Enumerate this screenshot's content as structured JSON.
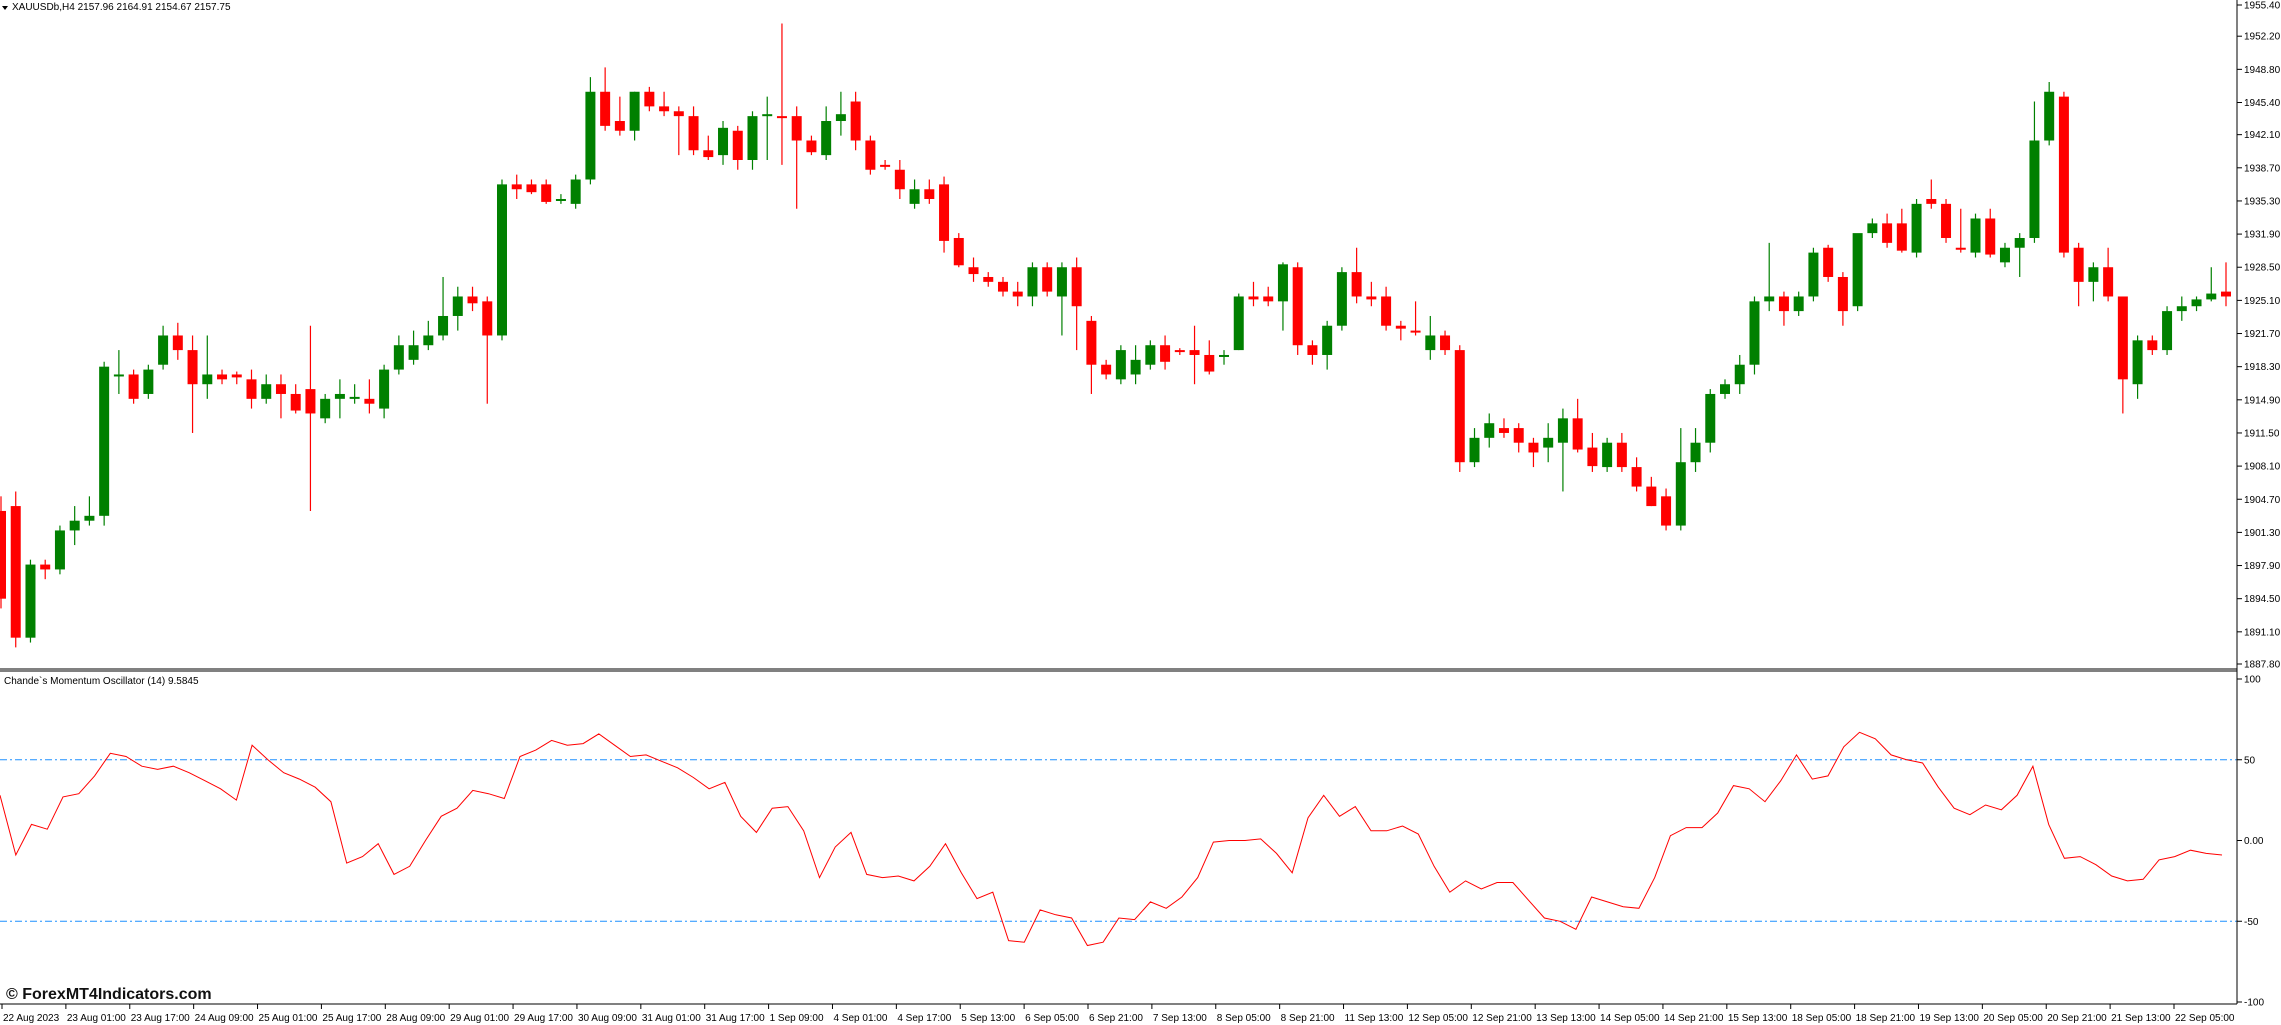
{
  "header": {
    "symbol_line": "XAUUSDb,H4  2157.96 2164.91 2154.67 2157.75",
    "menu_icon": "triangle-down-icon"
  },
  "indicator": {
    "title": "Chande`s Momentum Oscillator (14) 9.5845"
  },
  "watermark": {
    "copyright": "©",
    "text": "ForexMT4Indicators.com"
  },
  "colors": {
    "bull": "#008000",
    "bear": "#ff0000",
    "oscillator": "#ff0000",
    "level_lines": "#1e90ff",
    "separator": "#808080",
    "axis_text": "#000000"
  },
  "chart_data": [
    {
      "type": "candlestick",
      "title": "",
      "ylim": [
        1887.8,
        1955.4
      ],
      "y_ticks": [
        "1955.40",
        "1952.20",
        "1948.80",
        "1945.40",
        "1942.10",
        "1938.70",
        "1935.30",
        "1931.90",
        "1928.50",
        "1925.10",
        "1921.70",
        "1918.30",
        "1914.90",
        "1911.50",
        "1908.10",
        "1904.70",
        "1901.30",
        "1897.90",
        "1894.50",
        "1891.10",
        "1887.80"
      ],
      "x_ticks": [
        "22 Aug 2023",
        "23 Aug 01:00",
        "23 Aug 17:00",
        "24 Aug 09:00",
        "25 Aug 01:00",
        "25 Aug 17:00",
        "28 Aug 09:00",
        "29 Aug 01:00",
        "29 Aug 17:00",
        "30 Aug 09:00",
        "31 Aug 01:00",
        "31 Aug 17:00",
        "1 Sep 09:00",
        "4 Sep 01:00",
        "4 Sep 17:00",
        "5 Sep 13:00",
        "6 Sep 05:00",
        "6 Sep 21:00",
        "7 Sep 13:00",
        "8 Sep 05:00",
        "8 Sep 21:00",
        "11 Sep 13:00",
        "12 Sep 05:00",
        "12 Sep 21:00",
        "13 Sep 13:00",
        "14 Sep 05:00",
        "14 Sep 21:00",
        "15 Sep 13:00",
        "18 Sep 05:00",
        "18 Sep 21:00",
        "19 Sep 13:00",
        "20 Sep 05:00",
        "20 Sep 21:00",
        "21 Sep 13:00",
        "22 Sep 05:00"
      ],
      "candles": [
        [
          1903.5,
          1905,
          1893.5,
          1894.5
        ],
        [
          1904,
          1905.5,
          1889.5,
          1890.5
        ],
        [
          1890.5,
          1898.5,
          1890,
          1898
        ],
        [
          1898,
          1898.5,
          1896.5,
          1897.5
        ],
        [
          1897.5,
          1902,
          1897,
          1901.5
        ],
        [
          1901.5,
          1904,
          1900,
          1902.5
        ],
        [
          1902.5,
          1905,
          1902,
          1903
        ],
        [
          1903,
          1918.8,
          1902,
          1918.3
        ],
        [
          1917.5,
          1920,
          1915.5,
          1917.5
        ],
        [
          1917.5,
          1918,
          1914.5,
          1915
        ],
        [
          1915.5,
          1918.5,
          1915,
          1918
        ],
        [
          1918.5,
          1922.5,
          1918,
          1921.5
        ],
        [
          1921.5,
          1922.8,
          1919,
          1920
        ],
        [
          1920,
          1921.5,
          1911.5,
          1916.5
        ],
        [
          1916.5,
          1921.5,
          1915,
          1917.5
        ],
        [
          1917.5,
          1918,
          1916.5,
          1917
        ],
        [
          1917.5,
          1917.8,
          1916.5,
          1917.2
        ],
        [
          1917,
          1918,
          1914,
          1915
        ],
        [
          1915,
          1917.5,
          1914.5,
          1916.5
        ],
        [
          1916.5,
          1917.5,
          1913,
          1915.5
        ],
        [
          1915.5,
          1916.5,
          1913.5,
          1913.8
        ],
        [
          1916,
          1922.5,
          1903.5,
          1913.5
        ],
        [
          1913,
          1915.5,
          1912.5,
          1915
        ],
        [
          1915,
          1917,
          1913,
          1915.5
        ],
        [
          1915,
          1916.5,
          1914.5,
          1915.2
        ],
        [
          1915,
          1917,
          1913.5,
          1914.5
        ],
        [
          1914,
          1918.5,
          1913,
          1918
        ],
        [
          1918,
          1921.5,
          1917.5,
          1920.5
        ],
        [
          1919,
          1922,
          1918.5,
          1920.5
        ],
        [
          1920.5,
          1923,
          1920,
          1921.5
        ],
        [
          1921.5,
          1927.5,
          1921,
          1923.5
        ],
        [
          1923.5,
          1926.5,
          1922,
          1925.5
        ],
        [
          1925.5,
          1926.5,
          1924,
          1924.8
        ],
        [
          1925,
          1925.5,
          1914.5,
          1921.5
        ],
        [
          1921.5,
          1937.5,
          1921,
          1937
        ],
        [
          1937,
          1938,
          1935.5,
          1936.5
        ],
        [
          1937,
          1937.5,
          1936,
          1936.2
        ],
        [
          1937,
          1937.5,
          1935,
          1935.2
        ],
        [
          1935.5,
          1936,
          1935,
          1935.5
        ],
        [
          1935,
          1938,
          1934.5,
          1937.5
        ],
        [
          1937.5,
          1948,
          1937,
          1946.5
        ],
        [
          1946.5,
          1949,
          1942.5,
          1943
        ],
        [
          1943.5,
          1946,
          1942,
          1942.5
        ],
        [
          1942.5,
          1946.5,
          1941.5,
          1946.5
        ],
        [
          1946.5,
          1947,
          1944.5,
          1945
        ],
        [
          1945,
          1946.5,
          1944,
          1944.5
        ],
        [
          1944.5,
          1945,
          1940,
          1944
        ],
        [
          1944,
          1945,
          1940,
          1940.5
        ],
        [
          1940.5,
          1942,
          1939.5,
          1939.8
        ],
        [
          1940,
          1943.5,
          1939,
          1942.8
        ],
        [
          1942.5,
          1943,
          1938.5,
          1939.5
        ],
        [
          1939.5,
          1944.5,
          1938.5,
          1944
        ],
        [
          1944,
          1946,
          1939.5,
          1944.2
        ],
        [
          1944,
          1953.5,
          1939,
          1943.8
        ],
        [
          1944,
          1945,
          1934.5,
          1941.5
        ],
        [
          1941.5,
          1942,
          1940,
          1940.3
        ],
        [
          1940,
          1945,
          1939.5,
          1943.5
        ],
        [
          1943.5,
          1946.5,
          1942,
          1944.2
        ],
        [
          1945.5,
          1946.5,
          1940.5,
          1941.5
        ],
        [
          1941.5,
          1942,
          1938,
          1938.5
        ],
        [
          1939,
          1939.5,
          1938.5,
          1938.8
        ],
        [
          1938.5,
          1939.5,
          1935.5,
          1936.5
        ],
        [
          1935,
          1937.5,
          1934.5,
          1936.5
        ],
        [
          1936.5,
          1937.5,
          1935,
          1935.5
        ],
        [
          1937,
          1937.8,
          1930,
          1931.2
        ],
        [
          1931.5,
          1932,
          1928.5,
          1928.7
        ],
        [
          1928.5,
          1929.5,
          1927,
          1927.8
        ],
        [
          1927.5,
          1928,
          1926.5,
          1927
        ],
        [
          1927,
          1927.5,
          1925.5,
          1926
        ],
        [
          1926,
          1927,
          1924.5,
          1925.5
        ],
        [
          1925.5,
          1929,
          1924.5,
          1928.5
        ],
        [
          1928.5,
          1929,
          1925.5,
          1926
        ],
        [
          1925.5,
          1929,
          1921.5,
          1928.5
        ],
        [
          1928.5,
          1929.5,
          1920,
          1924.5
        ],
        [
          1923,
          1923.5,
          1915.5,
          1918.5
        ],
        [
          1918.5,
          1919,
          1917,
          1917.5
        ],
        [
          1917,
          1920.5,
          1916.5,
          1920
        ],
        [
          1917.5,
          1920.5,
          1916.5,
          1919
        ],
        [
          1918.5,
          1921,
          1918,
          1920.5
        ],
        [
          1920.5,
          1921.5,
          1918,
          1918.8
        ],
        [
          1920,
          1920.2,
          1919.5,
          1919.8
        ],
        [
          1920,
          1922.5,
          1916.5,
          1919.5
        ],
        [
          1919.5,
          1921,
          1917.5,
          1917.8
        ],
        [
          1919.5,
          1920,
          1918.5,
          1919.5
        ],
        [
          1920,
          1925.8,
          1920,
          1925.5
        ],
        [
          1925.5,
          1927,
          1924.5,
          1925.2
        ],
        [
          1925.5,
          1926.5,
          1924.5,
          1925
        ],
        [
          1925,
          1929,
          1922,
          1928.8
        ],
        [
          1928.5,
          1929,
          1919.5,
          1920.5
        ],
        [
          1920.5,
          1921,
          1918.5,
          1919.5
        ],
        [
          1919.5,
          1923,
          1918,
          1922.5
        ],
        [
          1922.5,
          1928.5,
          1922,
          1928
        ],
        [
          1928,
          1930.5,
          1924.8,
          1925.5
        ],
        [
          1925.5,
          1927,
          1924.5,
          1925.2
        ],
        [
          1925.5,
          1926.5,
          1922,
          1922.5
        ],
        [
          1922.5,
          1923,
          1921,
          1922.2
        ],
        [
          1922,
          1925,
          1921.5,
          1921.8
        ],
        [
          1920,
          1923.5,
          1919,
          1921.5
        ],
        [
          1921.5,
          1922,
          1919.5,
          1920
        ],
        [
          1920,
          1920.5,
          1907.5,
          1908.5
        ],
        [
          1908.5,
          1912,
          1908,
          1911
        ],
        [
          1911,
          1913.5,
          1910,
          1912.5
        ],
        [
          1912,
          1913,
          1911,
          1911.5
        ],
        [
          1912,
          1912.5,
          1909.5,
          1910.5
        ],
        [
          1910.5,
          1911,
          1908,
          1909.5
        ],
        [
          1910,
          1912.5,
          1908.5,
          1911
        ],
        [
          1910.5,
          1914,
          1905.5,
          1913
        ],
        [
          1913,
          1915,
          1909.5,
          1909.8
        ],
        [
          1910,
          1911.5,
          1907.5,
          1908.1
        ],
        [
          1908,
          1911,
          1907.5,
          1910.5
        ],
        [
          1910.5,
          1911.5,
          1907.5,
          1908
        ],
        [
          1908,
          1909,
          1905.5,
          1906
        ],
        [
          1906,
          1907,
          1904,
          1904
        ],
        [
          1905,
          1905.8,
          1901.5,
          1902
        ],
        [
          1902,
          1912,
          1901.5,
          1908.5
        ],
        [
          1908.5,
          1912,
          1907.5,
          1910.5
        ],
        [
          1910.5,
          1916,
          1909.5,
          1915.5
        ],
        [
          1915.5,
          1917,
          1915,
          1916.5
        ],
        [
          1916.5,
          1919.5,
          1915.5,
          1918.5
        ],
        [
          1918.5,
          1925.5,
          1917.5,
          1925
        ],
        [
          1925,
          1931,
          1924,
          1925.5
        ],
        [
          1925.5,
          1926,
          1922.5,
          1924
        ],
        [
          1924,
          1926,
          1923.5,
          1925.5
        ],
        [
          1925.5,
          1930.5,
          1925,
          1930
        ],
        [
          1930.5,
          1930.8,
          1927,
          1927.5
        ],
        [
          1927.5,
          1928,
          1922.5,
          1924
        ],
        [
          1924.5,
          1931.5,
          1924,
          1932
        ],
        [
          1932,
          1933.5,
          1931.5,
          1933
        ],
        [
          1933,
          1934,
          1930.5,
          1931
        ],
        [
          1933,
          1934.5,
          1930,
          1930.2
        ],
        [
          1930,
          1935.5,
          1929.5,
          1935
        ],
        [
          1935.5,
          1937.5,
          1934.5,
          1935
        ],
        [
          1935,
          1935.5,
          1931,
          1931.5
        ],
        [
          1930.5,
          1934.5,
          1930,
          1930.3
        ],
        [
          1930,
          1934,
          1929.5,
          1933.5
        ],
        [
          1933.5,
          1934.5,
          1929.5,
          1929.8
        ],
        [
          1929,
          1931,
          1928.5,
          1930.5
        ],
        [
          1930.5,
          1932,
          1927.5,
          1931.5
        ],
        [
          1931.5,
          1945.5,
          1931,
          1941.5
        ],
        [
          1941.5,
          1947.5,
          1941,
          1946.5
        ],
        [
          1946,
          1946.5,
          1929.5,
          1930
        ],
        [
          1930.5,
          1931,
          1924.5,
          1927
        ],
        [
          1927,
          1929,
          1925,
          1928.5
        ],
        [
          1928.5,
          1930.5,
          1925,
          1925.5
        ],
        [
          1925.5,
          1925.5,
          1913.5,
          1917
        ],
        [
          1916.5,
          1921.5,
          1915,
          1921
        ],
        [
          1921,
          1921.5,
          1919.5,
          1920
        ],
        [
          1920,
          1924.5,
          1919.5,
          1924
        ],
        [
          1924,
          1925.5,
          1923,
          1924.5
        ],
        [
          1924.5,
          1925.5,
          1924,
          1925.2
        ],
        [
          1925.2,
          1928.5,
          1925,
          1925.8
        ],
        [
          1926,
          1929,
          1924.5,
          1925.5
        ]
      ]
    },
    {
      "type": "line",
      "title": "Chande`s Momentum Oscillator (14) 9.5845",
      "ylim": [
        -100,
        100
      ],
      "y_ticks": [
        "100",
        "50",
        "0.00",
        "-50",
        "-100"
      ],
      "levels": [
        50,
        -50
      ],
      "series": [
        {
          "values": [
            28,
            -9,
            10,
            7,
            27,
            29,
            40,
            54,
            52,
            46,
            44,
            46,
            42,
            37,
            32,
            25,
            59,
            50,
            42,
            38,
            33,
            24,
            -14,
            -10,
            -2,
            -21,
            -16,
            0,
            15,
            20,
            31,
            29,
            26,
            52,
            56,
            62,
            59,
            60,
            66,
            59,
            52,
            53,
            49,
            45,
            39,
            32,
            36,
            15,
            5,
            20,
            21,
            6,
            -23,
            -4,
            5,
            -21,
            -23,
            -22,
            -25,
            -16,
            -2,
            -20,
            -36,
            -32,
            -62,
            -63,
            -43,
            -46,
            -48,
            -65,
            -63,
            -48,
            -49,
            -38,
            -42,
            -35,
            -23,
            -1,
            0,
            0,
            1,
            -8,
            -20,
            14,
            28,
            15,
            21,
            6,
            6,
            9,
            4,
            -16,
            -32,
            -25,
            -30,
            -26,
            -26,
            -37,
            -48,
            -50,
            -55,
            -35,
            -38,
            -41,
            -42,
            -23,
            3,
            8,
            8,
            17,
            34,
            32,
            24,
            37,
            53,
            38,
            40,
            58,
            67,
            63,
            53,
            50,
            48,
            33,
            20,
            16,
            22,
            19,
            28,
            46,
            10,
            -11,
            -10,
            -15,
            -22,
            -25,
            -24,
            -12,
            -10,
            -6,
            -8,
            -9
          ]
        }
      ]
    }
  ]
}
